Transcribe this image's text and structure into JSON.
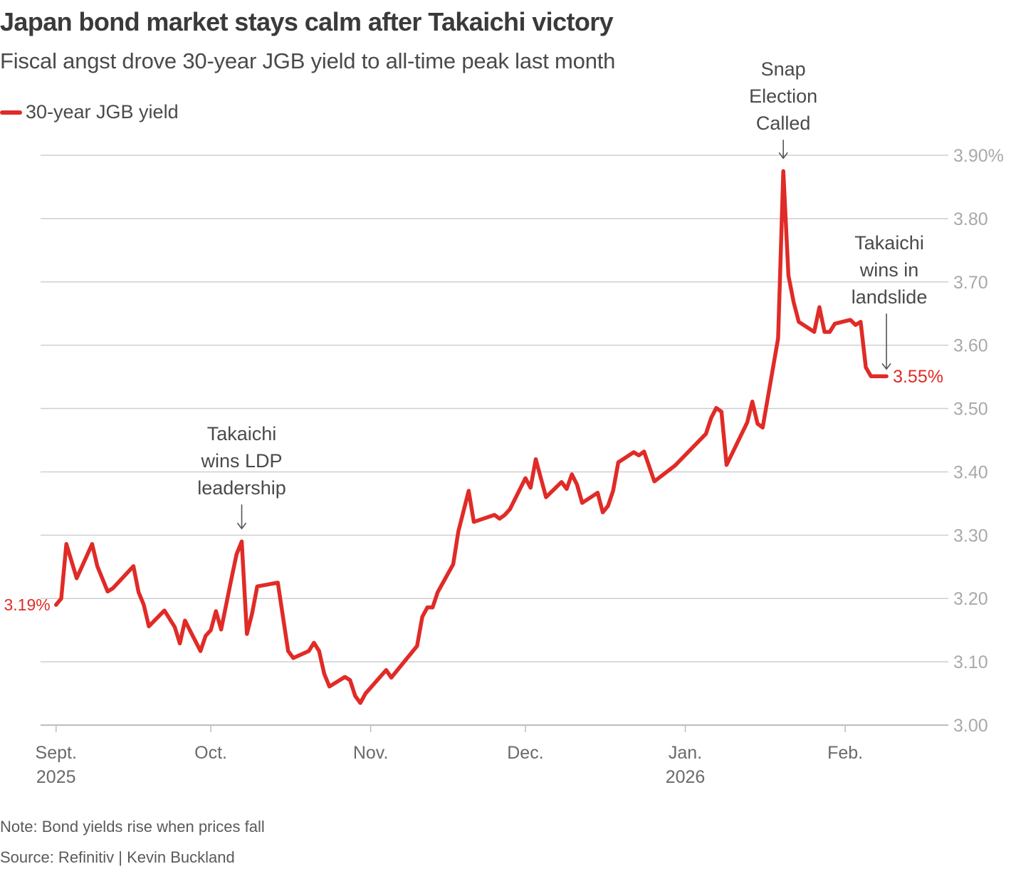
{
  "chart_data": {
    "type": "line",
    "title": "Japan bond market stays calm after Takaichi victory",
    "subtitle": "Fiscal angst drove 30-year JGB yield to all-time peak last month",
    "xlabel": "",
    "ylabel": "",
    "ylim": [
      3.0,
      3.9
    ],
    "grid": true,
    "legend_placement": "top-left",
    "y_ticks": [
      {
        "value": 3.9,
        "label": "3.90%"
      },
      {
        "value": 3.8,
        "label": "3.80"
      },
      {
        "value": 3.7,
        "label": "3.70"
      },
      {
        "value": 3.6,
        "label": "3.60"
      },
      {
        "value": 3.5,
        "label": "3.50"
      },
      {
        "value": 3.4,
        "label": "3.40"
      },
      {
        "value": 3.3,
        "label": "3.30"
      },
      {
        "value": 3.2,
        "label": "3.20"
      },
      {
        "value": 3.1,
        "label": "3.10"
      },
      {
        "value": 3.0,
        "label": "3.00"
      }
    ],
    "x_ticks": [
      {
        "date": "2025-09-01",
        "label": "Sept.",
        "year": "2025"
      },
      {
        "date": "2025-10-01",
        "label": "Oct.",
        "year": ""
      },
      {
        "date": "2025-11-01",
        "label": "Nov.",
        "year": ""
      },
      {
        "date": "2025-12-01",
        "label": "Dec.",
        "year": ""
      },
      {
        "date": "2026-01-01",
        "label": "Jan.",
        "year": "2026"
      },
      {
        "date": "2026-02-01",
        "label": "Feb.",
        "year": ""
      }
    ],
    "xlim": [
      "2025-08-29",
      "2026-02-21"
    ],
    "series": [
      {
        "name": "30-year JGB yield",
        "color": "#e02b27",
        "start_label": "3.19%",
        "end_label": "3.55%",
        "points": [
          [
            "2025-09-01",
            3.19
          ],
          [
            "2025-09-02",
            3.2
          ],
          [
            "2025-09-03",
            3.286
          ],
          [
            "2025-09-05",
            3.232
          ],
          [
            "2025-09-08",
            3.286
          ],
          [
            "2025-09-09",
            3.251
          ],
          [
            "2025-09-11",
            3.211
          ],
          [
            "2025-09-12",
            3.216
          ],
          [
            "2025-09-16",
            3.251
          ],
          [
            "2025-09-17",
            3.21
          ],
          [
            "2025-09-18",
            3.19
          ],
          [
            "2025-09-19",
            3.156
          ],
          [
            "2025-09-22",
            3.181
          ],
          [
            "2025-09-24",
            3.155
          ],
          [
            "2025-09-25",
            3.129
          ],
          [
            "2025-09-26",
            3.165
          ],
          [
            "2025-09-29",
            3.117
          ],
          [
            "2025-09-30",
            3.141
          ],
          [
            "2025-10-01",
            3.15
          ],
          [
            "2025-10-02",
            3.18
          ],
          [
            "2025-10-03",
            3.151
          ],
          [
            "2025-10-05",
            3.231
          ],
          [
            "2025-10-06",
            3.27
          ],
          [
            "2025-10-07",
            3.29
          ],
          [
            "2025-10-08",
            3.144
          ],
          [
            "2025-10-09",
            3.176
          ],
          [
            "2025-10-10",
            3.219
          ],
          [
            "2025-10-14",
            3.225
          ],
          [
            "2025-10-16",
            3.117
          ],
          [
            "2025-10-17",
            3.106
          ],
          [
            "2025-10-20",
            3.117
          ],
          [
            "2025-10-21",
            3.13
          ],
          [
            "2025-10-22",
            3.117
          ],
          [
            "2025-10-23",
            3.081
          ],
          [
            "2025-10-24",
            3.061
          ],
          [
            "2025-10-27",
            3.076
          ],
          [
            "2025-10-28",
            3.071
          ],
          [
            "2025-10-29",
            3.046
          ],
          [
            "2025-10-30",
            3.035
          ],
          [
            "2025-10-31",
            3.05
          ],
          [
            "2025-11-04",
            3.087
          ],
          [
            "2025-11-05",
            3.075
          ],
          [
            "2025-11-10",
            3.125
          ],
          [
            "2025-11-11",
            3.171
          ],
          [
            "2025-11-12",
            3.186
          ],
          [
            "2025-11-13",
            3.186
          ],
          [
            "2025-11-14",
            3.21
          ],
          [
            "2025-11-17",
            3.254
          ],
          [
            "2025-11-18",
            3.306
          ],
          [
            "2025-11-20",
            3.37
          ],
          [
            "2025-11-21",
            3.321
          ],
          [
            "2025-11-25",
            3.332
          ],
          [
            "2025-11-26",
            3.326
          ],
          [
            "2025-11-27",
            3.332
          ],
          [
            "2025-11-28",
            3.341
          ],
          [
            "2025-12-01",
            3.39
          ],
          [
            "2025-12-02",
            3.375
          ],
          [
            "2025-12-03",
            3.42
          ],
          [
            "2025-12-05",
            3.36
          ],
          [
            "2025-12-08",
            3.384
          ],
          [
            "2025-12-09",
            3.373
          ],
          [
            "2025-12-10",
            3.396
          ],
          [
            "2025-12-11",
            3.38
          ],
          [
            "2025-12-12",
            3.351
          ],
          [
            "2025-12-15",
            3.367
          ],
          [
            "2025-12-16",
            3.336
          ],
          [
            "2025-12-17",
            3.346
          ],
          [
            "2025-12-18",
            3.37
          ],
          [
            "2025-12-19",
            3.415
          ],
          [
            "2025-12-22",
            3.431
          ],
          [
            "2025-12-23",
            3.426
          ],
          [
            "2025-12-24",
            3.432
          ],
          [
            "2025-12-26",
            3.385
          ],
          [
            "2025-12-30",
            3.41
          ],
          [
            "2026-01-05",
            3.46
          ],
          [
            "2026-01-06",
            3.485
          ],
          [
            "2026-01-07",
            3.501
          ],
          [
            "2026-01-08",
            3.495
          ],
          [
            "2026-01-09",
            3.411
          ],
          [
            "2026-01-13",
            3.478
          ],
          [
            "2026-01-14",
            3.511
          ],
          [
            "2026-01-15",
            3.476
          ],
          [
            "2026-01-16",
            3.47
          ],
          [
            "2026-01-19",
            3.611
          ],
          [
            "2026-01-20",
            3.875
          ],
          [
            "2026-01-21",
            3.71
          ],
          [
            "2026-01-22",
            3.668
          ],
          [
            "2026-01-23",
            3.637
          ],
          [
            "2026-01-26",
            3.621
          ],
          [
            "2026-01-27",
            3.66
          ],
          [
            "2026-01-28",
            3.621
          ],
          [
            "2026-01-29",
            3.621
          ],
          [
            "2026-01-30",
            3.634
          ],
          [
            "2026-02-02",
            3.64
          ],
          [
            "2026-02-03",
            3.632
          ],
          [
            "2026-02-04",
            3.637
          ],
          [
            "2026-02-05",
            3.565
          ],
          [
            "2026-02-06",
            3.551
          ],
          [
            "2026-02-09",
            3.551
          ]
        ]
      }
    ],
    "annotations": [
      {
        "lines": [
          "Takaichi",
          "wins LDP",
          "leadership"
        ],
        "date": "2025-10-07",
        "value": 3.29
      },
      {
        "lines": [
          "Snap",
          "Election",
          "Called"
        ],
        "date": "2026-01-20",
        "value": 3.875
      },
      {
        "lines": [
          "Takaichi",
          "wins in",
          "landslide"
        ],
        "date": "2026-02-09",
        "value": 3.551
      }
    ]
  },
  "legend": {
    "label": "30-year JGB yield",
    "color": "#e02b27"
  },
  "footer": {
    "note": "Note: Bond yields rise when prices fall",
    "source": "Source: Refinitiv | Kevin Buckland"
  }
}
